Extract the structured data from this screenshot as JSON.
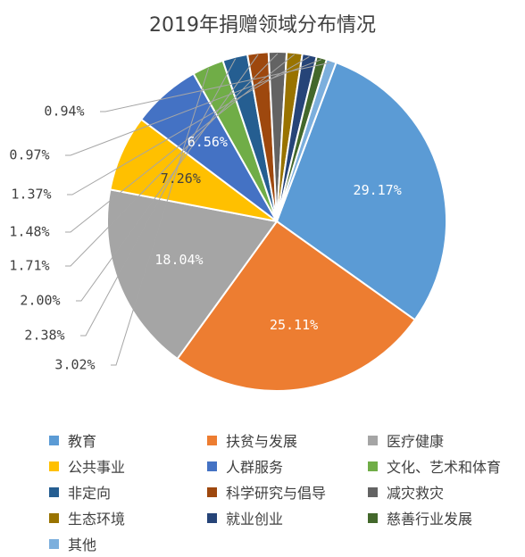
{
  "chart_data": {
    "type": "pie",
    "title": "2019年捐赠领域分布情况",
    "slices": [
      {
        "label": "教育",
        "value": 29.17,
        "display": "29.17%",
        "color": "#5B9BD5"
      },
      {
        "label": "扶贫与发展",
        "value": 25.11,
        "display": "25.11%",
        "color": "#ED7D31"
      },
      {
        "label": "医疗健康",
        "value": 18.04,
        "display": "18.04%",
        "color": "#A5A5A5"
      },
      {
        "label": "公共事业",
        "value": 7.26,
        "display": "7.26%",
        "color": "#FFC000"
      },
      {
        "label": "人群服务",
        "value": 6.56,
        "display": "6.56%",
        "color": "#4472C4"
      },
      {
        "label": "文化、艺术和体育",
        "value": 3.02,
        "display": "3.02%",
        "color": "#70AD47"
      },
      {
        "label": "非定向",
        "value": 2.38,
        "display": "2.38%",
        "color": "#255E91"
      },
      {
        "label": "科学研究与倡导",
        "value": 2.0,
        "display": "2.00%",
        "color": "#9E480E"
      },
      {
        "label": "减灾救灾",
        "value": 1.71,
        "display": "1.71%",
        "color": "#636363"
      },
      {
        "label": "生态环境",
        "value": 1.48,
        "display": "1.48%",
        "color": "#997300"
      },
      {
        "label": "就业创业",
        "value": 1.37,
        "display": "1.37%",
        "color": "#264478"
      },
      {
        "label": "慈善行业发展",
        "value": 0.97,
        "display": "0.97%",
        "color": "#43682B"
      },
      {
        "label": "其他",
        "value": 0.94,
        "display": "0.94%",
        "color": "#7CAFDD"
      }
    ],
    "legend_position": "bottom"
  }
}
